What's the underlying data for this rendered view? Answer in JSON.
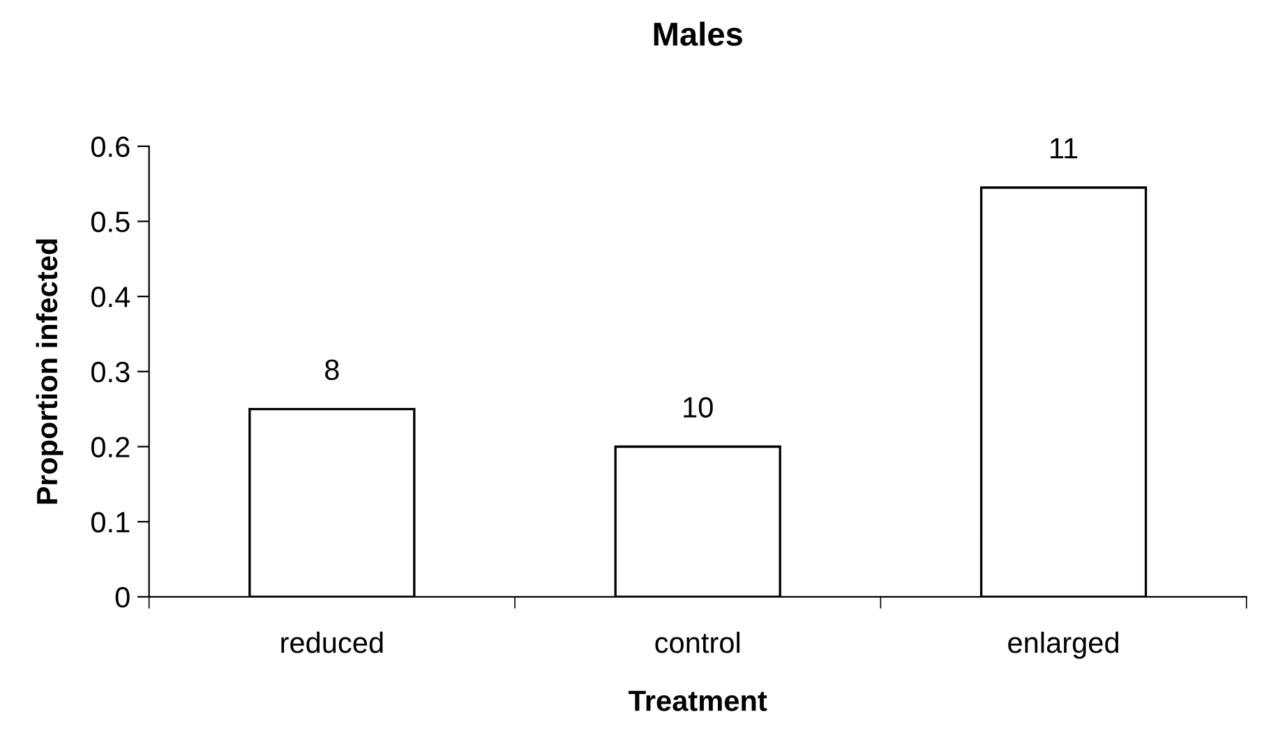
{
  "chart_data": {
    "type": "bar",
    "title": "Males",
    "xlabel": "Treatment",
    "ylabel": "Proportion infected",
    "categories": [
      "reduced",
      "control",
      "enlarged"
    ],
    "values": [
      0.25,
      0.2,
      0.545
    ],
    "annotations": [
      {
        "text": "8",
        "x": "reduced",
        "y": 0.25
      },
      {
        "text": "10",
        "x": "control",
        "y": 0.2
      },
      {
        "text": "11",
        "x": "enlarged",
        "y": 0.545
      }
    ],
    "color": "#ffffff",
    "ylim": [
      0,
      0.6
    ],
    "yticks": [
      0,
      0.1,
      0.2,
      0.3,
      0.4,
      0.5,
      0.6
    ],
    "grid": false,
    "legend": false
  }
}
